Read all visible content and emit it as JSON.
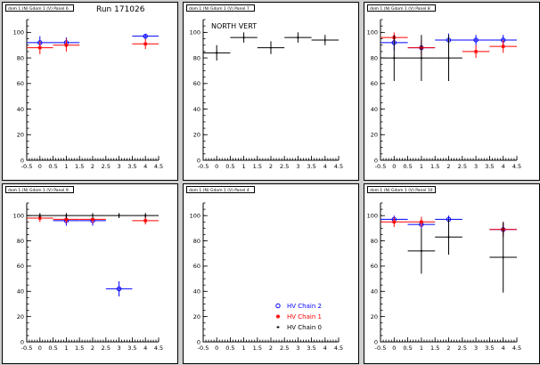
{
  "run_label": "Run 171026",
  "colors": {
    "chain2": "#0000ff",
    "chain1": "#ff0000",
    "chain0": "#000000"
  },
  "chart_data": [
    {
      "type": "scatter",
      "title": "dom 1 (N) Gdom 1 (V) Panel 6",
      "annotation": "",
      "xlim": [
        -0.5,
        4.5
      ],
      "ylim": [
        0,
        110
      ],
      "xticks": [
        "-0.5",
        "0",
        "0.5",
        "1",
        "1.5",
        "2",
        "2.5",
        "3",
        "3.5",
        "4",
        "4.5"
      ],
      "yticks": [
        "0",
        "20",
        "40",
        "60",
        "80",
        "100"
      ],
      "series": [
        {
          "name": "HV Chain 2",
          "color": "#0000ff",
          "marker": "circle",
          "points": [
            {
              "x": 0,
              "y": 92,
              "ey": 5
            },
            {
              "x": 1,
              "y": 92,
              "ey": 4
            },
            {
              "x": 4,
              "y": 97,
              "ey": 2
            }
          ]
        },
        {
          "name": "HV Chain 1",
          "color": "#ff0000",
          "marker": "star",
          "points": [
            {
              "x": 0,
              "y": 88,
              "ey": 5
            },
            {
              "x": 1,
              "y": 90,
              "ey": 5
            },
            {
              "x": 4,
              "y": 91,
              "ey": 4
            }
          ]
        }
      ]
    },
    {
      "type": "scatter",
      "title": "dom 1 (N) Gdom 1 (V) Panel 7",
      "annotation": "NORTH VERT",
      "xlim": [
        -0.5,
        4.5
      ],
      "ylim": [
        0,
        110
      ],
      "xticks": [
        "-0.5",
        "0",
        "0.5",
        "1",
        "1.5",
        "2",
        "2.5",
        "3",
        "3.5",
        "4",
        "4.5"
      ],
      "yticks": [
        "0",
        "20",
        "40",
        "60",
        "80",
        "100"
      ],
      "series": [
        {
          "name": "HV Chain 0",
          "color": "#000000",
          "marker": "cross",
          "points": [
            {
              "x": 0,
              "y": 84,
              "ey": 6
            },
            {
              "x": 1,
              "y": 96,
              "ey": 4
            },
            {
              "x": 2,
              "y": 88,
              "ey": 5
            },
            {
              "x": 3,
              "y": 96,
              "ey": 4
            },
            {
              "x": 4,
              "y": 94,
              "ey": 4
            }
          ]
        }
      ]
    },
    {
      "type": "scatter",
      "title": "dom 1 (N) Gdom 1 (V) Panel 8",
      "annotation": "",
      "xlim": [
        -0.5,
        4.5
      ],
      "ylim": [
        0,
        110
      ],
      "xticks": [
        "-0.5",
        "0",
        "0.5",
        "1",
        "1.5",
        "2",
        "2.5",
        "3",
        "3.5",
        "4",
        "4.5"
      ],
      "yticks": [
        "0",
        "20",
        "40",
        "60",
        "80",
        "100"
      ],
      "series": [
        {
          "name": "HV Chain 2",
          "color": "#0000ff",
          "marker": "circle",
          "points": [
            {
              "x": 0,
              "y": 92,
              "ey": 6
            },
            {
              "x": 1,
              "y": 88,
              "ey": 4
            },
            {
              "x": 2,
              "y": 94,
              "ey": 5
            },
            {
              "x": 3,
              "y": 94,
              "ey": 4
            },
            {
              "x": 4,
              "y": 94,
              "ey": 4
            }
          ]
        },
        {
          "name": "HV Chain 1",
          "color": "#ff0000",
          "marker": "star",
          "points": [
            {
              "x": 0,
              "y": 96,
              "ey": 4
            },
            {
              "x": 1,
              "y": 88,
              "ey": 6
            },
            {
              "x": 3,
              "y": 85,
              "ey": 5
            },
            {
              "x": 4,
              "y": 89,
              "ey": 5
            }
          ]
        },
        {
          "name": "HV Chain 0",
          "color": "#000000",
          "marker": "cross",
          "points": [
            {
              "x": 0,
              "y": 80,
              "ey": 18
            },
            {
              "x": 1,
              "y": 80,
              "ey": 18
            },
            {
              "x": 2,
              "y": 80,
              "ey": 18
            }
          ]
        }
      ]
    },
    {
      "type": "scatter",
      "title": "dom 1 (N) Gdom 1 (V) Panel 9",
      "annotation": "",
      "xlim": [
        -0.5,
        4.5
      ],
      "ylim": [
        0,
        110
      ],
      "xticks": [
        "-0.5",
        "0",
        "0.5",
        "1",
        "1.5",
        "2",
        "2.5",
        "3",
        "3.5",
        "4",
        "4.5"
      ],
      "yticks": [
        "0",
        "20",
        "40",
        "60",
        "80",
        "100"
      ],
      "series": [
        {
          "name": "HV Chain 2",
          "color": "#0000ff",
          "marker": "circle",
          "points": [
            {
              "x": 1,
              "y": 96,
              "ey": 4
            },
            {
              "x": 2,
              "y": 96,
              "ey": 4
            },
            {
              "x": 3,
              "y": 42,
              "ey": 6
            }
          ]
        },
        {
          "name": "HV Chain 1",
          "color": "#ff0000",
          "marker": "star",
          "points": [
            {
              "x": 0,
              "y": 98,
              "ey": 3
            },
            {
              "x": 1,
              "y": 97,
              "ey": 3
            },
            {
              "x": 2,
              "y": 97,
              "ey": 3
            },
            {
              "x": 4,
              "y": 96,
              "ey": 3
            }
          ]
        },
        {
          "name": "HV Chain 0",
          "color": "#000000",
          "marker": "cross",
          "points": [
            {
              "x": 0,
              "y": 100,
              "ey": 2
            },
            {
              "x": 1,
              "y": 100,
              "ey": 2
            },
            {
              "x": 2,
              "y": 100,
              "ey": 2
            },
            {
              "x": 3,
              "y": 100,
              "ey": 2
            },
            {
              "x": 4,
              "y": 100,
              "ey": 2
            }
          ]
        }
      ]
    },
    {
      "type": "scatter",
      "title": "dom 1 (N) Gdom 1 (V) Panel 4",
      "annotation": "",
      "xlim": [
        -0.5,
        4.5
      ],
      "ylim": [
        0,
        110
      ],
      "xticks": [
        "-0.5",
        "0",
        "0.5",
        "1",
        "1.5",
        "2",
        "2.5",
        "3",
        "3.5",
        "4",
        "4.5"
      ],
      "yticks": [
        "0",
        "20",
        "40",
        "60",
        "80",
        "100"
      ],
      "series": [],
      "legend": {
        "position": "bottom-right",
        "entries": [
          {
            "label": "HV Chain 2",
            "color": "#0000ff",
            "marker": "circle"
          },
          {
            "label": "HV Chain 1",
            "color": "#ff0000",
            "marker": "star"
          },
          {
            "label": "HV Chain 0",
            "color": "#000000",
            "marker": "cross"
          }
        ]
      }
    },
    {
      "type": "scatter",
      "title": "dom 1 (N) Gdom 1 (V) Panel 10",
      "annotation": "",
      "xlim": [
        -0.5,
        4.5
      ],
      "ylim": [
        0,
        110
      ],
      "xticks": [
        "-0.5",
        "0",
        "0.5",
        "1",
        "1.5",
        "2",
        "2.5",
        "3",
        "3.5",
        "4",
        "4.5"
      ],
      "yticks": [
        "0",
        "20",
        "40",
        "60",
        "80",
        "100"
      ],
      "series": [
        {
          "name": "HV Chain 2",
          "color": "#0000ff",
          "marker": "circle",
          "points": [
            {
              "x": 0,
              "y": 97,
              "ey": 3
            },
            {
              "x": 1,
              "y": 93,
              "ey": 3
            },
            {
              "x": 2,
              "y": 97,
              "ey": 3
            },
            {
              "x": 4,
              "y": 89,
              "ey": 5
            }
          ]
        },
        {
          "name": "HV Chain 1",
          "color": "#ff0000",
          "marker": "star",
          "points": [
            {
              "x": 0,
              "y": 95,
              "ey": 4
            },
            {
              "x": 1,
              "y": 95,
              "ey": 4
            },
            {
              "x": 4,
              "y": 89,
              "ey": 6
            }
          ]
        },
        {
          "name": "HV Chain 0",
          "color": "#000000",
          "marker": "cross",
          "points": [
            {
              "x": 1,
              "y": 72,
              "ey": 18
            },
            {
              "x": 2,
              "y": 83,
              "ey": 14
            },
            {
              "x": 4,
              "y": 67,
              "ey": 28
            }
          ]
        }
      ]
    }
  ]
}
